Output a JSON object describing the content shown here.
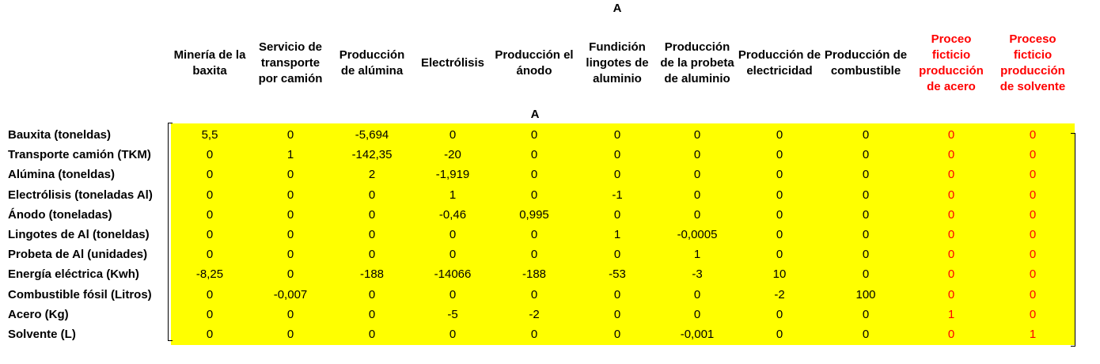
{
  "title_top": "A",
  "title_matrix": "A",
  "columns": [
    {
      "label": "Minería de la baxita",
      "red": false
    },
    {
      "label": "Servicio de transporte por camión",
      "red": false
    },
    {
      "label": "Producción de alúmina",
      "red": false
    },
    {
      "label": "Electrólisis",
      "red": false
    },
    {
      "label": "Producción el ánodo",
      "red": false
    },
    {
      "label": "Fundición lingotes de aluminio",
      "red": false
    },
    {
      "label": "Producción de la probeta de aluminio",
      "red": false
    },
    {
      "label": "Producción de electricidad",
      "red": false
    },
    {
      "label": "Producción de combustible",
      "red": false
    },
    {
      "label": "Proceo ficticio producción de acero",
      "red": true
    },
    {
      "label": "Proceso ficticio producción de solvente",
      "red": true
    }
  ],
  "rows": [
    {
      "label": "Bauxita (toneldas)",
      "values": [
        "5,5",
        "0",
        "-5,694",
        "0",
        "0",
        "0",
        "0",
        "0",
        "0",
        "0",
        "0"
      ]
    },
    {
      "label": "Transporte camión (TKM)",
      "values": [
        "0",
        "1",
        "-142,35",
        "-20",
        "0",
        "0",
        "0",
        "0",
        "0",
        "0",
        "0"
      ]
    },
    {
      "label": "Alúmina (toneldas)",
      "values": [
        "0",
        "0",
        "2",
        "-1,919",
        "0",
        "0",
        "0",
        "0",
        "0",
        "0",
        "0"
      ]
    },
    {
      "label": "Electrólisis (toneladas Al)",
      "values": [
        "0",
        "0",
        "0",
        "1",
        "0",
        "-1",
        "0",
        "0",
        "0",
        "0",
        "0"
      ]
    },
    {
      "label": "Ánodo (toneladas)",
      "values": [
        "0",
        "0",
        "0",
        "-0,46",
        "0,995",
        "0",
        "0",
        "0",
        "0",
        "0",
        "0"
      ]
    },
    {
      "label": "Lingotes de Al (toneldas)",
      "values": [
        "0",
        "0",
        "0",
        "0",
        "0",
        "1",
        "-0,0005",
        "0",
        "0",
        "0",
        "0"
      ]
    },
    {
      "label": "Probeta de Al (unidades)",
      "values": [
        "0",
        "0",
        "0",
        "0",
        "0",
        "0",
        "1",
        "0",
        "0",
        "0",
        "0"
      ]
    },
    {
      "label": "Energía eléctrica (Kwh)",
      "values": [
        "-8,25",
        "0",
        "-188",
        "-14066",
        "-188",
        "-53",
        "-3",
        "10",
        "0",
        "0",
        "0"
      ]
    },
    {
      "label": "Combustible fósil (Litros)",
      "values": [
        "0",
        "-0,007",
        "0",
        "0",
        "0",
        "0",
        "0",
        "-2",
        "100",
        "0",
        "0"
      ]
    },
    {
      "label": "Acero (Kg)",
      "values": [
        "0",
        "0",
        "0",
        "-5",
        "-2",
        "0",
        "0",
        "0",
        "0",
        "1",
        "0"
      ]
    },
    {
      "label": "Solvente (L)",
      "values": [
        "0",
        "0",
        "0",
        "0",
        "0",
        "0",
        "-0,001",
        "0",
        "0",
        "0",
        "1"
      ]
    }
  ],
  "colors": {
    "highlight": "#ffff00",
    "accent_red": "#ff0000",
    "text": "#000000"
  }
}
